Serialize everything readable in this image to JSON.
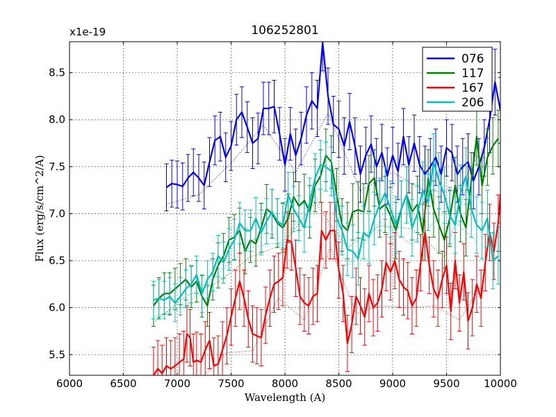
{
  "chart_data": {
    "type": "line",
    "title": "106252801",
    "xlabel": "Wavelength (A)",
    "ylabel": "Flux (erg/s/cm^2/A)",
    "y_multiplier": "x1e-19",
    "xlim": [
      6000,
      10000
    ],
    "ylim": [
      5.28,
      8.83
    ],
    "xticks": [
      6000,
      6500,
      7000,
      7500,
      8000,
      8500,
      9000,
      9500,
      10000
    ],
    "yticks": [
      5.5,
      6.0,
      6.5,
      7.0,
      7.5,
      8.0,
      8.5
    ],
    "ytick_labels": [
      "5.5",
      "6.0",
      "6.5",
      "7.0",
      "7.5",
      "8.0",
      "8.5"
    ],
    "grid": true,
    "legend_position": "top-right",
    "series": [
      {
        "name": "076",
        "color": "#0000ff",
        "x": [
          6900,
          6950,
          7000,
          7050,
          7100,
          7150,
          7200,
          7250,
          7300,
          7350,
          7400,
          7450,
          7500,
          7550,
          7600,
          7650,
          7700,
          7750,
          7800,
          7850,
          7900,
          7950,
          8000,
          8050,
          8100,
          8150,
          8200,
          8250,
          8300,
          8350,
          8400,
          8450,
          8500,
          8550,
          8600,
          8650,
          8700,
          8750,
          8800,
          8850,
          8900,
          8950,
          9000,
          9050,
          9100,
          9150,
          9200,
          9250,
          9300,
          9350,
          9400,
          9450,
          9500,
          9550,
          9600,
          9650,
          9700,
          9750,
          9800,
          9850,
          9900,
          9950,
          10000
        ],
        "y": [
          7.28,
          7.32,
          7.31,
          7.29,
          7.38,
          7.44,
          7.38,
          7.3,
          7.55,
          7.78,
          7.82,
          7.6,
          7.72,
          8.0,
          8.08,
          7.92,
          7.75,
          7.8,
          8.12,
          8.12,
          8.14,
          7.85,
          7.52,
          7.85,
          7.62,
          7.8,
          8.05,
          8.2,
          8.12,
          8.82,
          8.25,
          7.95,
          7.9,
          7.72,
          7.98,
          7.72,
          7.42,
          7.62,
          7.74,
          7.5,
          7.65,
          7.4,
          7.62,
          7.45,
          7.82,
          7.52,
          7.75,
          7.52,
          7.42,
          7.5,
          7.6,
          7.42,
          7.7,
          7.65,
          7.42,
          7.5,
          7.55,
          7.35,
          7.5,
          7.7,
          8.0,
          8.4,
          8.1
        ],
        "yerr": [
          0.25,
          0.25,
          0.25,
          0.25,
          0.25,
          0.25,
          0.25,
          0.25,
          0.26,
          0.26,
          0.26,
          0.26,
          0.26,
          0.27,
          0.27,
          0.27,
          0.27,
          0.27,
          0.28,
          0.28,
          0.28,
          0.28,
          0.28,
          0.28,
          0.28,
          0.28,
          0.3,
          0.3,
          0.3,
          0.3,
          0.3,
          0.3,
          0.3,
          0.3,
          0.3,
          0.3,
          0.3,
          0.3,
          0.3,
          0.3,
          0.3,
          0.3,
          0.3,
          0.3,
          0.3,
          0.3,
          0.3,
          0.3,
          0.3,
          0.3,
          0.3,
          0.3,
          0.3,
          0.3,
          0.3,
          0.3,
          0.3,
          0.3,
          0.3,
          0.3,
          0.35,
          0.35,
          0.35
        ]
      },
      {
        "name": "117",
        "color": "#008000",
        "x": [
          6780,
          6830,
          6880,
          6930,
          6980,
          7030,
          7080,
          7130,
          7180,
          7230,
          7280,
          7330,
          7380,
          7430,
          7480,
          7530,
          7580,
          7630,
          7680,
          7730,
          7780,
          7830,
          7880,
          7930,
          7980,
          8030,
          8080,
          8130,
          8180,
          8230,
          8280,
          8330,
          8380,
          8430,
          8480,
          8530,
          8580,
          8630,
          8680,
          8730,
          8780,
          8830,
          8880,
          8930,
          8980,
          9030,
          9080,
          9130,
          9180,
          9230,
          9280,
          9330,
          9380,
          9430,
          9480,
          9530,
          9580,
          9630,
          9680,
          9730,
          9780,
          9830,
          9880,
          9930,
          9980
        ],
        "y": [
          6.02,
          6.1,
          6.15,
          6.15,
          6.2,
          6.25,
          6.3,
          6.22,
          6.28,
          6.12,
          6.02,
          6.3,
          6.45,
          6.55,
          6.72,
          6.75,
          6.82,
          6.6,
          6.72,
          6.68,
          6.85,
          7.05,
          7.0,
          6.9,
          6.85,
          6.95,
          7.18,
          7.08,
          7.14,
          7.02,
          7.3,
          7.4,
          7.62,
          7.55,
          7.2,
          6.88,
          6.82,
          7.02,
          7.04,
          7.02,
          7.32,
          7.38,
          7.05,
          7.1,
          6.98,
          6.82,
          7.05,
          7.2,
          7.02,
          7.1,
          6.8,
          7.38,
          7.05,
          6.88,
          6.72,
          6.95,
          7.3,
          7.0,
          6.85,
          7.35,
          7.82,
          7.3,
          7.6,
          7.72,
          7.8
        ],
        "yerr": [
          0.22,
          0.22,
          0.22,
          0.22,
          0.22,
          0.22,
          0.22,
          0.22,
          0.22,
          0.22,
          0.22,
          0.22,
          0.24,
          0.24,
          0.24,
          0.24,
          0.24,
          0.24,
          0.24,
          0.24,
          0.26,
          0.26,
          0.26,
          0.26,
          0.26,
          0.26,
          0.26,
          0.26,
          0.28,
          0.28,
          0.28,
          0.28,
          0.28,
          0.28,
          0.28,
          0.28,
          0.3,
          0.3,
          0.3,
          0.3,
          0.3,
          0.3,
          0.3,
          0.3,
          0.3,
          0.3,
          0.3,
          0.3,
          0.3,
          0.3,
          0.3,
          0.3,
          0.3,
          0.3,
          0.3,
          0.3,
          0.3,
          0.3,
          0.3,
          0.3,
          0.3,
          0.3,
          0.3,
          0.3,
          0.3
        ]
      },
      {
        "name": "167",
        "color": "#ff0000",
        "x": [
          6780,
          6820,
          6860,
          6900,
          6940,
          6980,
          7020,
          7060,
          7090,
          7120,
          7150,
          7180,
          7220,
          7260,
          7300,
          7340,
          7380,
          7420,
          7460,
          7500,
          7540,
          7580,
          7620,
          7660,
          7700,
          7740,
          7780,
          7820,
          7860,
          7900,
          7940,
          7980,
          8020,
          8060,
          8100,
          8140,
          8180,
          8220,
          8260,
          8300,
          8340,
          8380,
          8420,
          8460,
          8500,
          8540,
          8580,
          8620,
          8660,
          8700,
          8740,
          8780,
          8820,
          8860,
          8900,
          8940,
          8980,
          9020,
          9060,
          9100,
          9140,
          9180,
          9220,
          9260,
          9300,
          9340,
          9380,
          9420,
          9460,
          9500,
          9540,
          9580,
          9620,
          9660,
          9700,
          9740,
          9780,
          9820,
          9860,
          9900,
          9940,
          9980,
          10000
        ],
        "y": [
          5.28,
          5.35,
          5.3,
          5.38,
          5.35,
          5.38,
          5.42,
          5.45,
          5.72,
          5.68,
          5.42,
          5.44,
          5.42,
          5.55,
          5.65,
          5.38,
          5.4,
          5.55,
          5.7,
          5.9,
          6.1,
          6.28,
          6.1,
          5.88,
          5.72,
          5.7,
          5.68,
          5.92,
          6.1,
          6.25,
          6.28,
          6.32,
          6.72,
          6.7,
          6.42,
          6.12,
          6.05,
          6.02,
          6.12,
          6.15,
          6.82,
          6.72,
          6.82,
          6.82,
          6.4,
          6.15,
          5.62,
          5.82,
          6.12,
          6.02,
          5.9,
          6.15,
          6.0,
          6.05,
          6.2,
          6.48,
          6.38,
          6.5,
          6.3,
          6.22,
          6.18,
          6.02,
          6.1,
          6.48,
          6.8,
          6.45,
          6.2,
          6.1,
          6.3,
          6.45,
          5.96,
          6.5,
          6.05,
          6.38,
          5.86,
          6.0,
          6.25,
          6.1,
          6.48,
          6.8,
          6.6,
          6.9,
          7.2
        ],
        "yerr": [
          0.3,
          0.3,
          0.3,
          0.3,
          0.3,
          0.3,
          0.3,
          0.3,
          0.3,
          0.3,
          0.3,
          0.3,
          0.3,
          0.3,
          0.3,
          0.3,
          0.3,
          0.3,
          0.3,
          0.3,
          0.3,
          0.3,
          0.3,
          0.3,
          0.3,
          0.3,
          0.3,
          0.3,
          0.3,
          0.3,
          0.3,
          0.3,
          0.3,
          0.3,
          0.3,
          0.3,
          0.3,
          0.3,
          0.3,
          0.3,
          0.3,
          0.3,
          0.3,
          0.3,
          0.3,
          0.3,
          0.3,
          0.3,
          0.3,
          0.3,
          0.3,
          0.3,
          0.3,
          0.3,
          0.3,
          0.3,
          0.3,
          0.3,
          0.3,
          0.3,
          0.3,
          0.3,
          0.3,
          0.3,
          0.3,
          0.3,
          0.3,
          0.3,
          0.3,
          0.3,
          0.3,
          0.3,
          0.3,
          0.3,
          0.3,
          0.3,
          0.3,
          0.3,
          0.3,
          0.3,
          0.3,
          0.3,
          0.3
        ]
      },
      {
        "name": "206",
        "color": "#00bfbf",
        "x": [
          6780,
          6830,
          6880,
          6930,
          6980,
          7030,
          7080,
          7130,
          7180,
          7230,
          7280,
          7330,
          7380,
          7430,
          7480,
          7530,
          7580,
          7630,
          7680,
          7730,
          7780,
          7830,
          7880,
          7930,
          7980,
          8030,
          8080,
          8130,
          8180,
          8230,
          8280,
          8330,
          8380,
          8430,
          8480,
          8530,
          8580,
          8630,
          8680,
          8730,
          8780,
          8830,
          8880,
          8930,
          8980,
          9030,
          9080,
          9130,
          9180,
          9230,
          9280,
          9330,
          9380,
          9430,
          9480,
          9530,
          9580,
          9630,
          9680,
          9730,
          9780,
          9830,
          9880,
          9930,
          9980
        ],
        "y": [
          6.08,
          6.1,
          6.08,
          6.12,
          6.05,
          6.12,
          6.2,
          6.25,
          6.35,
          6.15,
          6.3,
          6.38,
          6.55,
          6.48,
          6.62,
          6.72,
          6.9,
          6.82,
          6.82,
          6.95,
          6.8,
          6.92,
          7.02,
          6.92,
          6.88,
          7.2,
          7.05,
          6.95,
          6.85,
          7.12,
          7.38,
          7.52,
          7.5,
          7.45,
          6.95,
          6.82,
          6.62,
          6.6,
          6.52,
          6.8,
          6.75,
          6.95,
          7.1,
          7.22,
          7.05,
          6.88,
          7.05,
          7.2,
          6.85,
          7.0,
          7.25,
          7.12,
          7.55,
          7.35,
          7.2,
          6.98,
          6.88,
          7.22,
          7.4,
          7.05,
          6.88,
          6.82,
          6.95,
          6.5,
          6.55
        ],
        "yerr": [
          0.2,
          0.2,
          0.2,
          0.2,
          0.2,
          0.2,
          0.2,
          0.2,
          0.2,
          0.2,
          0.2,
          0.2,
          0.22,
          0.22,
          0.22,
          0.22,
          0.22,
          0.22,
          0.22,
          0.22,
          0.24,
          0.24,
          0.24,
          0.24,
          0.24,
          0.24,
          0.24,
          0.24,
          0.26,
          0.26,
          0.26,
          0.26,
          0.26,
          0.26,
          0.26,
          0.26,
          0.28,
          0.28,
          0.28,
          0.28,
          0.28,
          0.28,
          0.28,
          0.28,
          0.3,
          0.3,
          0.3,
          0.3,
          0.3,
          0.3,
          0.3,
          0.3,
          0.3,
          0.3,
          0.3,
          0.3,
          0.3,
          0.3,
          0.3,
          0.3,
          0.3,
          0.3,
          0.3,
          0.3,
          0.3
        ]
      }
    ]
  }
}
